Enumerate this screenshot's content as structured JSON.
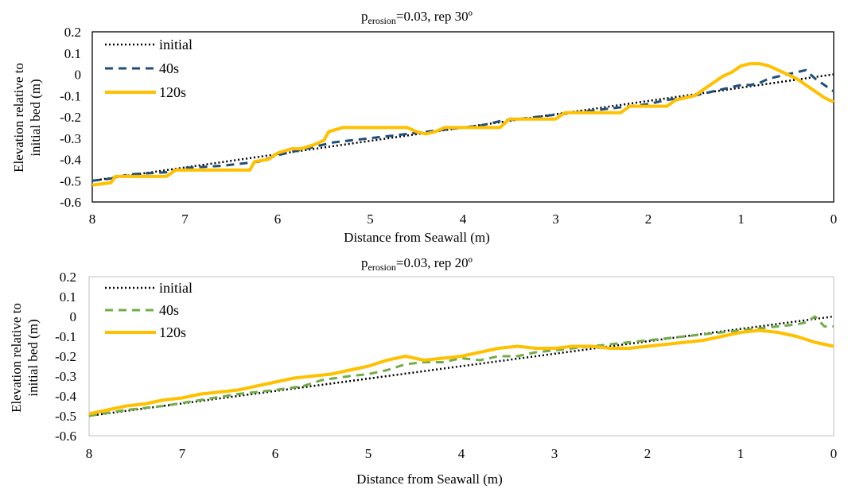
{
  "colors": {
    "initial": "#000000",
    "s40_top": "#1f4e79",
    "s40_bottom": "#70ad47",
    "s120": "#ffc000",
    "frame": "#000000",
    "frame_light": "#bfbfbf"
  },
  "chart_data": [
    {
      "type": "line",
      "title_main": "p",
      "title_sub": "erosion",
      "title_rest": "=0.03, rep 30º",
      "xlabel": "Distance from Seawall (m)",
      "ylabel_line1": "Elevation relative to",
      "ylabel_line2": "initial bed  (m)",
      "xlim": [
        8,
        0
      ],
      "ylim": [
        -0.6,
        0.2
      ],
      "xticks": [
        "8",
        "7",
        "6",
        "5",
        "4",
        "3",
        "2",
        "1",
        "0"
      ],
      "yticks": [
        "0.2",
        "0.1",
        "0",
        "-0.1",
        "-0.2",
        "-0.3",
        "-0.4",
        "-0.5",
        "-0.6"
      ],
      "legend": [
        "initial",
        "40s",
        "120s"
      ],
      "series": [
        {
          "name": "initial",
          "style": "dotted",
          "x": [
            8,
            0
          ],
          "y": [
            -0.5,
            0.0
          ]
        },
        {
          "name": "40s",
          "style": "dashed",
          "x": [
            8,
            7.8,
            7.6,
            7.2,
            7.0,
            6.6,
            6.2,
            6.0,
            5.8,
            5.6,
            5.4,
            5.2,
            5.0,
            4.8,
            4.6,
            4.4,
            4.2,
            4.0,
            3.8,
            3.6,
            3.4,
            3.2,
            3.0,
            2.8,
            2.6,
            2.4,
            2.2,
            2.0,
            1.8,
            1.6,
            1.4,
            1.2,
            1.1,
            1.0,
            0.9,
            0.8,
            0.7,
            0.6,
            0.5,
            0.4,
            0.3,
            0.2,
            0.1,
            0.0
          ],
          "y": [
            -0.5,
            -0.49,
            -0.47,
            -0.46,
            -0.44,
            -0.43,
            -0.41,
            -0.38,
            -0.36,
            -0.34,
            -0.32,
            -0.31,
            -0.3,
            -0.29,
            -0.28,
            -0.27,
            -0.26,
            -0.25,
            -0.24,
            -0.22,
            -0.21,
            -0.2,
            -0.19,
            -0.18,
            -0.17,
            -0.16,
            -0.15,
            -0.14,
            -0.12,
            -0.11,
            -0.09,
            -0.07,
            -0.06,
            -0.05,
            -0.05,
            -0.04,
            -0.02,
            -0.01,
            0.0,
            0.01,
            0.02,
            -0.02,
            -0.05,
            -0.08
          ]
        },
        {
          "name": "120s",
          "style": "solid",
          "x": [
            8,
            7.8,
            7.75,
            7.2,
            7.1,
            6.3,
            6.25,
            6.1,
            6.0,
            5.85,
            5.75,
            5.6,
            5.5,
            5.45,
            5.3,
            4.6,
            4.5,
            4.4,
            4.3,
            4.2,
            4.1,
            3.6,
            3.5,
            3.0,
            2.9,
            2.3,
            2.2,
            1.8,
            1.7,
            1.5,
            1.4,
            1.3,
            1.2,
            1.1,
            1.0,
            0.9,
            0.8,
            0.7,
            0.6,
            0.5,
            0.4,
            0.3,
            0.2,
            0.1,
            0.0
          ],
          "y": [
            -0.52,
            -0.51,
            -0.48,
            -0.48,
            -0.45,
            -0.45,
            -0.41,
            -0.4,
            -0.37,
            -0.35,
            -0.35,
            -0.33,
            -0.31,
            -0.27,
            -0.25,
            -0.25,
            -0.27,
            -0.28,
            -0.27,
            -0.25,
            -0.25,
            -0.25,
            -0.21,
            -0.21,
            -0.18,
            -0.18,
            -0.15,
            -0.15,
            -0.12,
            -0.1,
            -0.07,
            -0.04,
            -0.01,
            0.01,
            0.04,
            0.05,
            0.05,
            0.04,
            0.02,
            0.0,
            -0.02,
            -0.05,
            -0.08,
            -0.11,
            -0.13
          ]
        }
      ]
    },
    {
      "type": "line",
      "title_main": "p",
      "title_sub": "erosion",
      "title_rest": "=0.03, rep 20º",
      "xlabel": "Distance from Seawall (m)",
      "ylabel_line1": "Elevation relative to",
      "ylabel_line2": "initial bed  (m)",
      "xlim": [
        8,
        0
      ],
      "ylim": [
        -0.6,
        0.2
      ],
      "xticks": [
        "8",
        "7",
        "6",
        "5",
        "4",
        "3",
        "2",
        "1",
        "0"
      ],
      "yticks": [
        "0.2",
        "0.1",
        "0",
        "-0.1",
        "-0.2",
        "-0.3",
        "-0.4",
        "-0.5",
        "-0.6"
      ],
      "legend": [
        "initial",
        "40s",
        "120s"
      ],
      "series": [
        {
          "name": "initial",
          "style": "dotted",
          "x": [
            8,
            0
          ],
          "y": [
            -0.5,
            0.0
          ]
        },
        {
          "name": "40s",
          "style": "dashed",
          "x": [
            8,
            7.6,
            7.2,
            6.8,
            6.4,
            6.0,
            5.7,
            5.5,
            5.2,
            5.0,
            4.8,
            4.6,
            4.4,
            4.2,
            4.0,
            3.8,
            3.6,
            3.4,
            3.2,
            3.0,
            2.8,
            2.6,
            2.4,
            2.2,
            2.0,
            1.8,
            1.6,
            1.4,
            1.2,
            1.0,
            0.8,
            0.6,
            0.4,
            0.3,
            0.2,
            0.1,
            0.0
          ],
          "y": [
            -0.5,
            -0.47,
            -0.45,
            -0.42,
            -0.39,
            -0.37,
            -0.35,
            -0.32,
            -0.3,
            -0.29,
            -0.27,
            -0.24,
            -0.23,
            -0.23,
            -0.21,
            -0.22,
            -0.2,
            -0.2,
            -0.18,
            -0.17,
            -0.16,
            -0.15,
            -0.14,
            -0.13,
            -0.12,
            -0.11,
            -0.1,
            -0.09,
            -0.08,
            -0.07,
            -0.06,
            -0.05,
            -0.04,
            -0.03,
            0.0,
            -0.05,
            -0.05
          ]
        },
        {
          "name": "120s",
          "style": "solid",
          "x": [
            8,
            7.8,
            7.6,
            7.4,
            7.2,
            7.0,
            6.8,
            6.6,
            6.4,
            6.2,
            6.0,
            5.8,
            5.6,
            5.4,
            5.2,
            5.0,
            4.8,
            4.6,
            4.4,
            4.2,
            4.0,
            3.8,
            3.6,
            3.4,
            3.2,
            3.0,
            2.8,
            2.6,
            2.4,
            2.2,
            2.0,
            1.8,
            1.6,
            1.4,
            1.2,
            1.0,
            0.8,
            0.6,
            0.4,
            0.2,
            0.0
          ],
          "y": [
            -0.49,
            -0.47,
            -0.45,
            -0.44,
            -0.42,
            -0.41,
            -0.39,
            -0.38,
            -0.37,
            -0.35,
            -0.33,
            -0.31,
            -0.3,
            -0.29,
            -0.27,
            -0.25,
            -0.22,
            -0.2,
            -0.22,
            -0.21,
            -0.2,
            -0.18,
            -0.16,
            -0.15,
            -0.16,
            -0.16,
            -0.15,
            -0.15,
            -0.16,
            -0.16,
            -0.15,
            -0.14,
            -0.13,
            -0.12,
            -0.1,
            -0.08,
            -0.07,
            -0.08,
            -0.1,
            -0.13,
            -0.15
          ]
        }
      ]
    }
  ]
}
